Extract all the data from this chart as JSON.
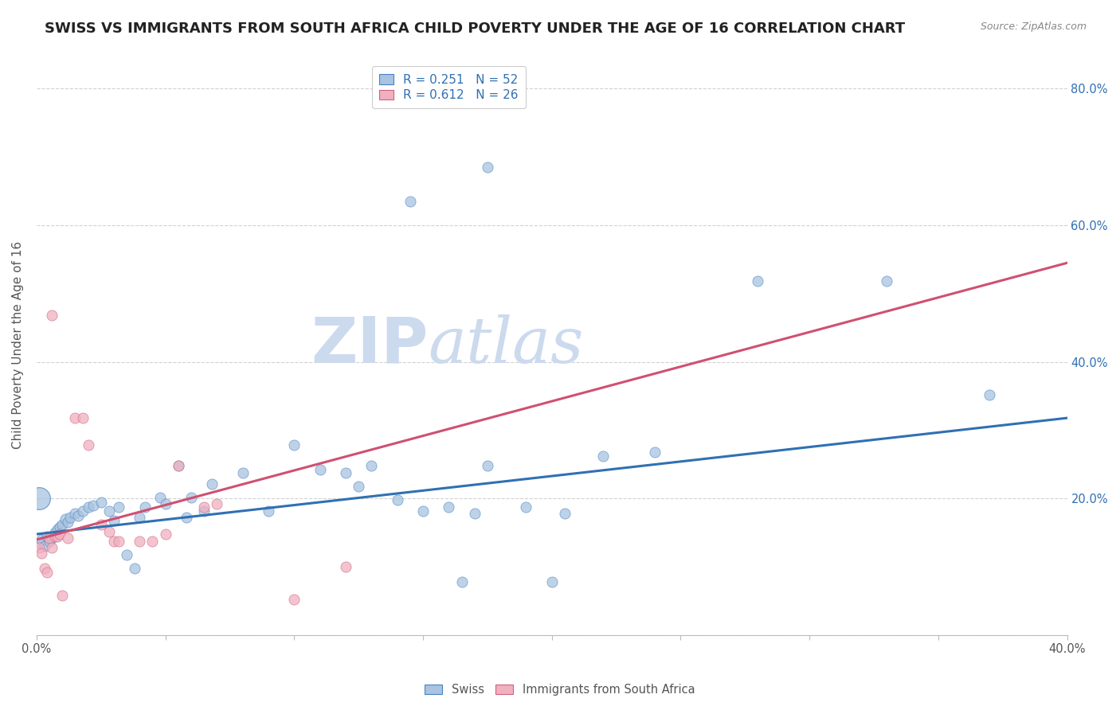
{
  "title": "SWISS VS IMMIGRANTS FROM SOUTH AFRICA CHILD POVERTY UNDER THE AGE OF 16 CORRELATION CHART",
  "source": "Source: ZipAtlas.com",
  "ylabel": "Child Poverty Under the Age of 16",
  "xlim": [
    0.0,
    0.4
  ],
  "ylim": [
    0.0,
    0.85
  ],
  "ytick_vals": [
    0.0,
    0.2,
    0.4,
    0.6,
    0.8
  ],
  "xtick_vals": [
    0.0,
    0.05,
    0.1,
    0.15,
    0.2,
    0.25,
    0.3,
    0.35,
    0.4
  ],
  "swiss_color": "#a8c4e0",
  "swiss_edge_color": "#4a80c4",
  "swiss_line_color": "#3070b3",
  "sa_color": "#f0b0c0",
  "sa_edge_color": "#d06080",
  "sa_line_color": "#d05070",
  "watermark_color": "#ccdaee",
  "swiss_points": [
    [
      0.001,
      0.135
    ],
    [
      0.002,
      0.14
    ],
    [
      0.003,
      0.13
    ],
    [
      0.004,
      0.145
    ],
    [
      0.005,
      0.138
    ],
    [
      0.006,
      0.142
    ],
    [
      0.007,
      0.15
    ],
    [
      0.008,
      0.155
    ],
    [
      0.009,
      0.158
    ],
    [
      0.01,
      0.162
    ],
    [
      0.011,
      0.17
    ],
    [
      0.012,
      0.165
    ],
    [
      0.013,
      0.172
    ],
    [
      0.015,
      0.178
    ],
    [
      0.016,
      0.175
    ],
    [
      0.018,
      0.182
    ],
    [
      0.02,
      0.188
    ],
    [
      0.022,
      0.19
    ],
    [
      0.025,
      0.195
    ],
    [
      0.028,
      0.182
    ],
    [
      0.03,
      0.168
    ],
    [
      0.032,
      0.188
    ],
    [
      0.035,
      0.118
    ],
    [
      0.038,
      0.098
    ],
    [
      0.04,
      0.172
    ],
    [
      0.042,
      0.188
    ],
    [
      0.048,
      0.202
    ],
    [
      0.05,
      0.192
    ],
    [
      0.055,
      0.248
    ],
    [
      0.058,
      0.172
    ],
    [
      0.06,
      0.202
    ],
    [
      0.065,
      0.182
    ],
    [
      0.068,
      0.222
    ],
    [
      0.08,
      0.238
    ],
    [
      0.09,
      0.182
    ],
    [
      0.1,
      0.278
    ],
    [
      0.11,
      0.242
    ],
    [
      0.12,
      0.238
    ],
    [
      0.125,
      0.218
    ],
    [
      0.13,
      0.248
    ],
    [
      0.14,
      0.198
    ],
    [
      0.15,
      0.182
    ],
    [
      0.16,
      0.188
    ],
    [
      0.165,
      0.078
    ],
    [
      0.17,
      0.178
    ],
    [
      0.175,
      0.248
    ],
    [
      0.19,
      0.188
    ],
    [
      0.2,
      0.078
    ],
    [
      0.205,
      0.178
    ],
    [
      0.22,
      0.262
    ],
    [
      0.24,
      0.268
    ],
    [
      0.37,
      0.352
    ]
  ],
  "swiss_high_points": [
    [
      0.145,
      0.635
    ],
    [
      0.175,
      0.685
    ],
    [
      0.28,
      0.518
    ],
    [
      0.33,
      0.518
    ]
  ],
  "sa_points": [
    [
      0.001,
      0.128
    ],
    [
      0.002,
      0.12
    ],
    [
      0.003,
      0.098
    ],
    [
      0.004,
      0.092
    ],
    [
      0.005,
      0.142
    ],
    [
      0.006,
      0.128
    ],
    [
      0.007,
      0.145
    ],
    [
      0.008,
      0.145
    ],
    [
      0.009,
      0.148
    ],
    [
      0.01,
      0.058
    ],
    [
      0.012,
      0.142
    ],
    [
      0.015,
      0.318
    ],
    [
      0.018,
      0.318
    ],
    [
      0.02,
      0.278
    ],
    [
      0.025,
      0.162
    ],
    [
      0.028,
      0.152
    ],
    [
      0.03,
      0.138
    ],
    [
      0.032,
      0.138
    ],
    [
      0.04,
      0.138
    ],
    [
      0.045,
      0.138
    ],
    [
      0.05,
      0.148
    ],
    [
      0.055,
      0.248
    ],
    [
      0.065,
      0.188
    ],
    [
      0.07,
      0.192
    ],
    [
      0.006,
      0.468
    ],
    [
      0.1,
      0.052
    ],
    [
      0.12,
      0.1
    ]
  ],
  "swiss_line": [
    [
      0.0,
      0.148
    ],
    [
      0.4,
      0.318
    ]
  ],
  "sa_line": [
    [
      0.0,
      0.14
    ],
    [
      0.4,
      0.545
    ]
  ],
  "swiss_large_point": [
    0.001,
    0.2
  ],
  "swiss_large_size": 400,
  "background_color": "#ffffff",
  "grid_color": "#cccccc",
  "title_fontsize": 13,
  "axis_label_fontsize": 11,
  "tick_fontsize": 10.5,
  "right_tick_color": "#3070b3",
  "legend_label_color": "#3070b3",
  "legend_n_color": "#3070b3"
}
